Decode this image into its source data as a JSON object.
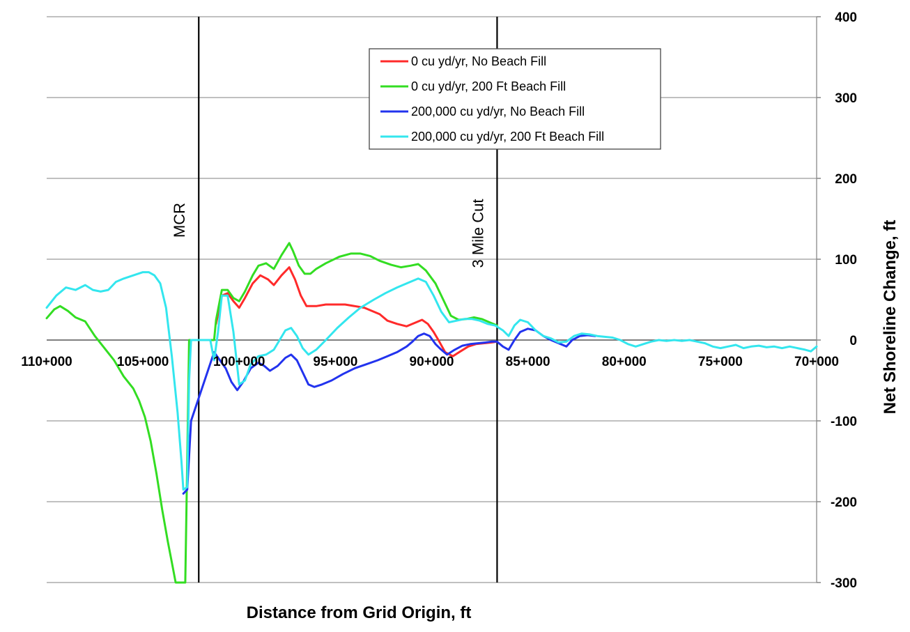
{
  "chart_data": {
    "type": "line",
    "xlabel": "Distance from Grid Origin, ft",
    "ylabel": "Net Shoreline Change, ft",
    "x_axis_reversed": true,
    "xlim": [
      110000,
      70000
    ],
    "ylim": [
      -300,
      400
    ],
    "y_axis_side": "right",
    "y_ticks": [
      400,
      300,
      200,
      100,
      0,
      -100,
      -200,
      -300
    ],
    "x_ticks": [
      110000,
      105000,
      100000,
      95000,
      90000,
      85000,
      80000,
      75000,
      70000
    ],
    "x_tick_labels": [
      "110+000",
      "105+000",
      "100+000",
      "95+000",
      "90+000",
      "85+000",
      "80+000",
      "75+000",
      "70+000"
    ],
    "grid": "horizontal",
    "legend_position": "top-center",
    "vlines": [
      {
        "x": 102100,
        "label": "MCR"
      },
      {
        "x": 86600,
        "label": "3 Mile Cut"
      }
    ],
    "series": [
      {
        "name": "0 cu yd/yr, No Beach Fill",
        "color": "#ff2a2a",
        "points": [
          [
            101200,
            20
          ],
          [
            100900,
            55
          ],
          [
            100600,
            58
          ],
          [
            100300,
            48
          ],
          [
            100000,
            40
          ],
          [
            99700,
            52
          ],
          [
            99300,
            70
          ],
          [
            98900,
            80
          ],
          [
            98500,
            75
          ],
          [
            98200,
            68
          ],
          [
            97800,
            80
          ],
          [
            97400,
            90
          ],
          [
            97100,
            75
          ],
          [
            96800,
            55
          ],
          [
            96500,
            42
          ],
          [
            96000,
            42
          ],
          [
            95500,
            44
          ],
          [
            94500,
            44
          ],
          [
            93500,
            40
          ],
          [
            92700,
            32
          ],
          [
            92300,
            24
          ],
          [
            91800,
            20
          ],
          [
            91300,
            17
          ],
          [
            90800,
            22
          ],
          [
            90500,
            25
          ],
          [
            90200,
            20
          ],
          [
            89900,
            10
          ],
          [
            89600,
            -2
          ],
          [
            89300,
            -15
          ],
          [
            88900,
            -20
          ],
          [
            88500,
            -14
          ],
          [
            88100,
            -8
          ],
          [
            87700,
            -5
          ],
          [
            87300,
            -4
          ],
          [
            86900,
            -3
          ],
          [
            86600,
            -2
          ]
        ]
      },
      {
        "name": "0 cu yd/yr, 200 Ft Beach Fill",
        "color": "#33dd22",
        "points": [
          [
            110000,
            27
          ],
          [
            109600,
            38
          ],
          [
            109300,
            42
          ],
          [
            108900,
            36
          ],
          [
            108500,
            28
          ],
          [
            108000,
            23
          ],
          [
            107500,
            5
          ],
          [
            107000,
            -10
          ],
          [
            106500,
            -25
          ],
          [
            106000,
            -45
          ],
          [
            105500,
            -60
          ],
          [
            105200,
            -75
          ],
          [
            104900,
            -95
          ],
          [
            104600,
            -125
          ],
          [
            104300,
            -165
          ],
          [
            104000,
            -210
          ],
          [
            103700,
            -250
          ],
          [
            103500,
            -275
          ],
          [
            103300,
            -300
          ],
          [
            102800,
            -300
          ],
          [
            102700,
            -150
          ],
          [
            102600,
            0
          ],
          [
            102500,
            0
          ],
          [
            101300,
            0
          ],
          [
            101200,
            25
          ],
          [
            100900,
            62
          ],
          [
            100600,
            62
          ],
          [
            100300,
            52
          ],
          [
            100000,
            48
          ],
          [
            99700,
            60
          ],
          [
            99300,
            80
          ],
          [
            99000,
            92
          ],
          [
            98600,
            95
          ],
          [
            98200,
            88
          ],
          [
            97800,
            105
          ],
          [
            97400,
            120
          ],
          [
            97200,
            110
          ],
          [
            96900,
            92
          ],
          [
            96600,
            82
          ],
          [
            96300,
            82
          ],
          [
            96000,
            88
          ],
          [
            95500,
            95
          ],
          [
            94800,
            103
          ],
          [
            94200,
            107
          ],
          [
            93700,
            107
          ],
          [
            93200,
            104
          ],
          [
            92700,
            98
          ],
          [
            92100,
            93
          ],
          [
            91600,
            90
          ],
          [
            91100,
            92
          ],
          [
            90700,
            94
          ],
          [
            90300,
            86
          ],
          [
            89800,
            70
          ],
          [
            89400,
            50
          ],
          [
            89000,
            30
          ],
          [
            88600,
            25
          ],
          [
            88200,
            26
          ],
          [
            87800,
            28
          ],
          [
            87400,
            26
          ],
          [
            87000,
            22
          ],
          [
            86600,
            18
          ]
        ]
      },
      {
        "name": "200,000 cu yd/yr, No Beach Fill",
        "color": "#2233ee",
        "points": [
          [
            102900,
            -190
          ],
          [
            102700,
            -185
          ],
          [
            102500,
            -100
          ],
          [
            101300,
            -15
          ],
          [
            101000,
            -25
          ],
          [
            100700,
            -35
          ],
          [
            100400,
            -52
          ],
          [
            100100,
            -62
          ],
          [
            99800,
            -52
          ],
          [
            99400,
            -35
          ],
          [
            99000,
            -28
          ],
          [
            98700,
            -32
          ],
          [
            98400,
            -38
          ],
          [
            98000,
            -32
          ],
          [
            97600,
            -22
          ],
          [
            97300,
            -18
          ],
          [
            97000,
            -25
          ],
          [
            96700,
            -40
          ],
          [
            96400,
            -55
          ],
          [
            96100,
            -58
          ],
          [
            95700,
            -55
          ],
          [
            95200,
            -50
          ],
          [
            94600,
            -42
          ],
          [
            94000,
            -35
          ],
          [
            93400,
            -30
          ],
          [
            92800,
            -25
          ],
          [
            92300,
            -20
          ],
          [
            91800,
            -15
          ],
          [
            91300,
            -8
          ],
          [
            91000,
            -2
          ],
          [
            90700,
            5
          ],
          [
            90400,
            8
          ],
          [
            90100,
            5
          ],
          [
            89800,
            -5
          ],
          [
            89500,
            -12
          ],
          [
            89200,
            -18
          ],
          [
            88800,
            -12
          ],
          [
            88400,
            -7
          ],
          [
            88000,
            -5
          ],
          [
            87600,
            -4
          ],
          [
            87200,
            -3
          ],
          [
            86900,
            -2
          ],
          [
            86600,
            -2
          ],
          [
            86300,
            -8
          ],
          [
            86000,
            -12
          ],
          [
            85700,
            0
          ],
          [
            85400,
            10
          ],
          [
            85000,
            14
          ],
          [
            84600,
            12
          ],
          [
            84200,
            5
          ],
          [
            83800,
            0
          ],
          [
            83400,
            -4
          ],
          [
            83000,
            -8
          ],
          [
            82700,
            0
          ],
          [
            82300,
            5
          ],
          [
            81900,
            6
          ],
          [
            81500,
            5
          ]
        ]
      },
      {
        "name": "200,000 cu yd/yr, 200 Ft Beach Fill",
        "color": "#33e6ee",
        "points": [
          [
            110000,
            40
          ],
          [
            109500,
            55
          ],
          [
            109000,
            65
          ],
          [
            108500,
            62
          ],
          [
            108000,
            68
          ],
          [
            107600,
            62
          ],
          [
            107200,
            60
          ],
          [
            106800,
            62
          ],
          [
            106400,
            72
          ],
          [
            106000,
            76
          ],
          [
            105500,
            80
          ],
          [
            105000,
            84
          ],
          [
            104700,
            84
          ],
          [
            104400,
            80
          ],
          [
            104100,
            70
          ],
          [
            103800,
            40
          ],
          [
            103500,
            -20
          ],
          [
            103200,
            -90
          ],
          [
            103000,
            -150
          ],
          [
            102900,
            -185
          ],
          [
            102700,
            -182
          ],
          [
            102600,
            -50
          ],
          [
            102500,
            0
          ],
          [
            102000,
            0
          ],
          [
            101500,
            0
          ],
          [
            101300,
            -25
          ],
          [
            101100,
            10
          ],
          [
            100900,
            55
          ],
          [
            100600,
            55
          ],
          [
            100300,
            10
          ],
          [
            100000,
            -55
          ],
          [
            99700,
            -50
          ],
          [
            99400,
            -30
          ],
          [
            99000,
            -20
          ],
          [
            98600,
            -18
          ],
          [
            98200,
            -12
          ],
          [
            97900,
            0
          ],
          [
            97600,
            12
          ],
          [
            97300,
            15
          ],
          [
            97000,
            5
          ],
          [
            96700,
            -10
          ],
          [
            96400,
            -18
          ],
          [
            96000,
            -12
          ],
          [
            95500,
            0
          ],
          [
            94900,
            15
          ],
          [
            94300,
            28
          ],
          [
            93700,
            40
          ],
          [
            93000,
            50
          ],
          [
            92400,
            58
          ],
          [
            91800,
            65
          ],
          [
            91300,
            70
          ],
          [
            90700,
            76
          ],
          [
            90300,
            72
          ],
          [
            89900,
            55
          ],
          [
            89500,
            35
          ],
          [
            89100,
            22
          ],
          [
            88700,
            24
          ],
          [
            88300,
            26
          ],
          [
            87900,
            26
          ],
          [
            87500,
            24
          ],
          [
            87100,
            20
          ],
          [
            86700,
            18
          ],
          [
            86300,
            12
          ],
          [
            86000,
            5
          ],
          [
            85700,
            18
          ],
          [
            85400,
            25
          ],
          [
            85000,
            22
          ],
          [
            84600,
            12
          ],
          [
            84200,
            5
          ],
          [
            83800,
            2
          ],
          [
            83400,
            -3
          ],
          [
            83000,
            -2
          ],
          [
            82600,
            5
          ],
          [
            82200,
            8
          ],
          [
            81800,
            7
          ],
          [
            81400,
            5
          ],
          [
            81000,
            4
          ],
          [
            80600,
            3
          ],
          [
            80200,
            0
          ],
          [
            79800,
            -5
          ],
          [
            79400,
            -8
          ],
          [
            79000,
            -5
          ],
          [
            78600,
            -2
          ],
          [
            78200,
            0
          ],
          [
            77800,
            -1
          ],
          [
            77400,
            0
          ],
          [
            77000,
            -1
          ],
          [
            76600,
            0
          ],
          [
            76200,
            -2
          ],
          [
            75800,
            -4
          ],
          [
            75400,
            -8
          ],
          [
            75000,
            -10
          ],
          [
            74600,
            -8
          ],
          [
            74200,
            -6
          ],
          [
            73800,
            -10
          ],
          [
            73400,
            -8
          ],
          [
            73000,
            -7
          ],
          [
            72600,
            -9
          ],
          [
            72200,
            -8
          ],
          [
            71800,
            -10
          ],
          [
            71400,
            -8
          ],
          [
            71000,
            -10
          ],
          [
            70600,
            -12
          ],
          [
            70300,
            -14
          ],
          [
            70000,
            -8
          ]
        ]
      }
    ]
  }
}
